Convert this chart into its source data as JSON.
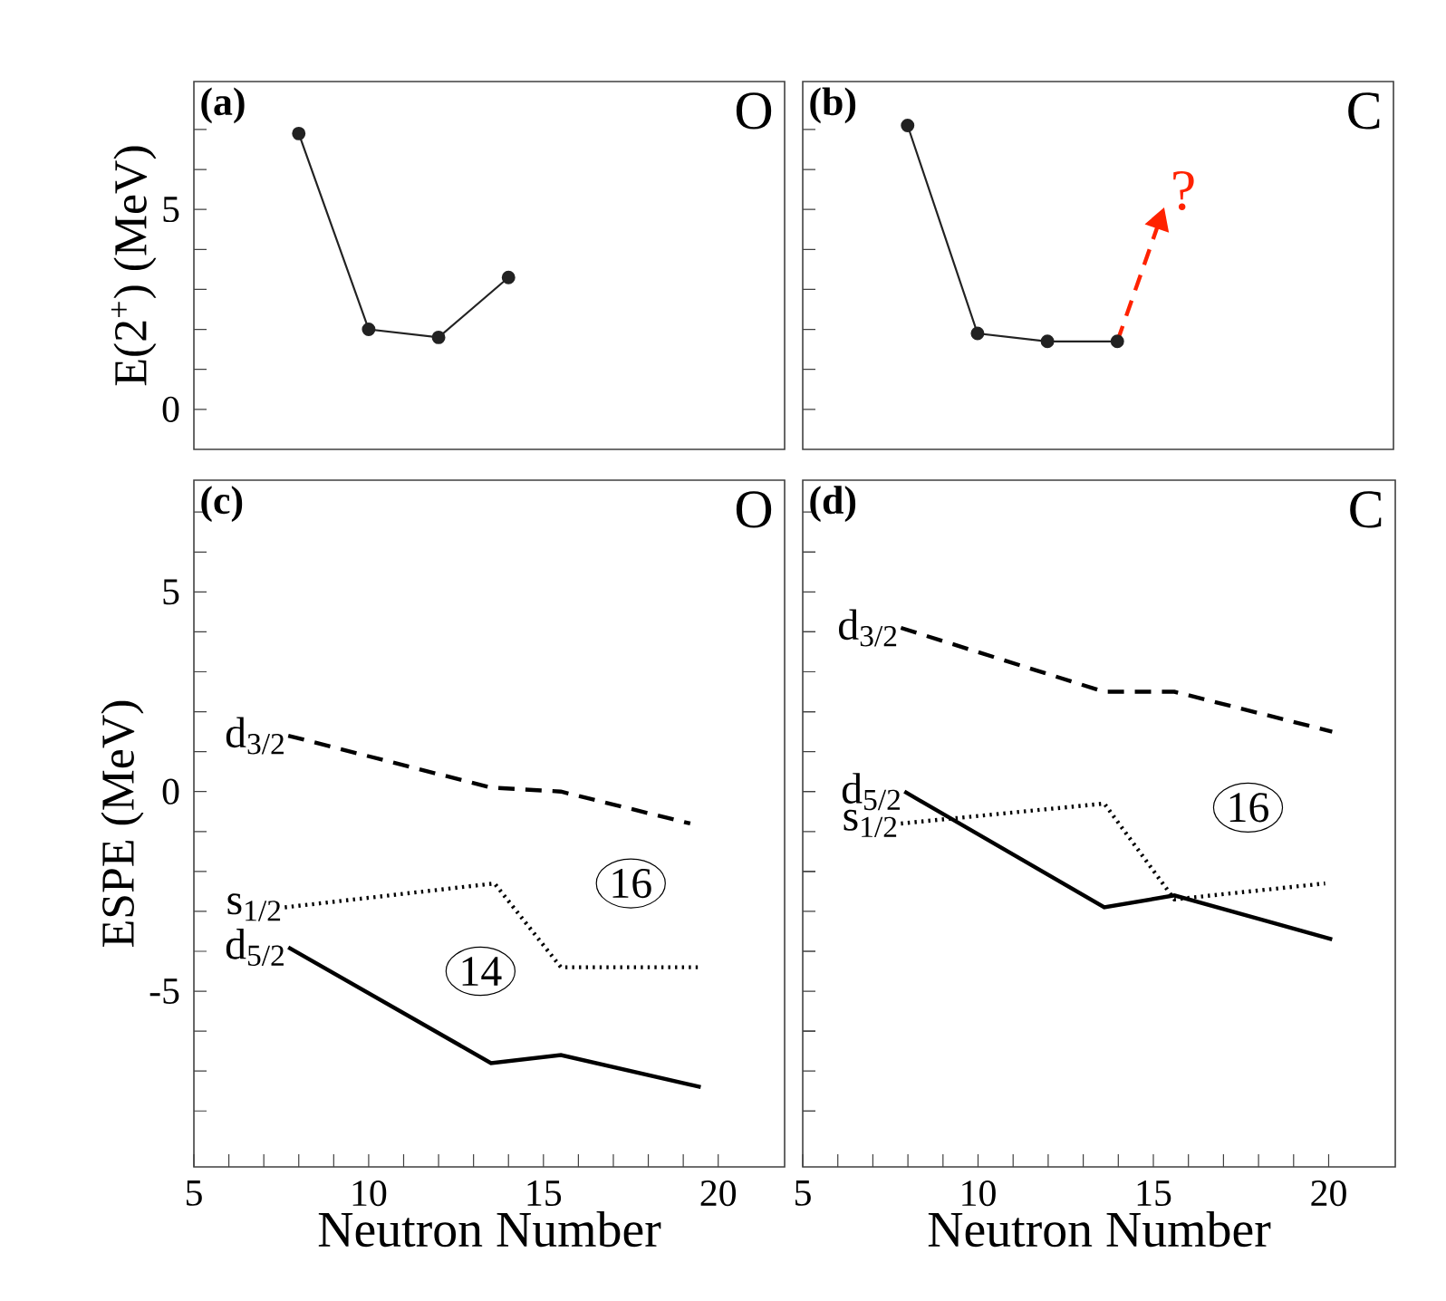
{
  "chart_data": [
    {
      "type": "line",
      "title": "(a)",
      "subtitle": "O",
      "ylabel": "E(2$^{+}$) (MeV)",
      "xlim": [
        5,
        21.9
      ],
      "ylim": [
        -1,
        8.2
      ],
      "yticks": [
        0,
        {
          "value": 1,
          "label": null
        },
        {
          "value": 2,
          "label": null
        },
        {
          "value": 3,
          "label": null
        },
        {
          "value": 4,
          "label": null
        },
        5,
        {
          "value": 6,
          "label": null
        },
        {
          "value": 7,
          "label": null
        }
      ],
      "tick_labels": "y",
      "marker": "circle",
      "line_style": "solid",
      "series": [
        {
          "color": "#222222",
          "x": [
            8,
            10,
            12,
            14
          ],
          "values": [
            6.9,
            2.0,
            1.8,
            3.3
          ]
        }
      ]
    },
    {
      "type": "line",
      "title": "(b)",
      "subtitle": "C",
      "xlim": [
        5,
        21.9
      ],
      "ylim": [
        -1,
        8.2
      ],
      "yticks": [
        0,
        {
          "value": 1,
          "label": null
        },
        {
          "value": 2,
          "label": null
        },
        {
          "value": 3,
          "label": null
        },
        {
          "value": 4,
          "label": null
        },
        5,
        {
          "value": 6,
          "label": null
        },
        {
          "value": 7,
          "label": null
        }
      ],
      "tick_labels": false,
      "marker": "circle",
      "line_style": "solid",
      "annotations": [
        "?"
      ],
      "series": [
        {
          "color": "#222222",
          "x": [
            8,
            10,
            12,
            14
          ],
          "values": [
            7.1,
            1.9,
            1.7,
            1.7
          ]
        },
        {
          "color": "#ff2200",
          "x": [
            14,
            15.2
          ],
          "values": [
            1.7,
            4.7
          ],
          "marker": "triangle",
          "line_style": "dashed"
        }
      ]
    },
    {
      "type": "line",
      "title": "(c)",
      "subtitle": "O",
      "xlabel": "Neutron Number",
      "ylabel": "ESPE (MeV)",
      "xlim": [
        5,
        21.9
      ],
      "ylim": [
        -9.4,
        7.8
      ],
      "xticks": [
        5,
        {
          "value": 6,
          "label": null
        },
        {
          "value": 7,
          "label": null
        },
        {
          "value": 8,
          "label": null
        },
        {
          "value": 9,
          "label": null
        },
        10,
        {
          "value": 11,
          "label": null
        },
        {
          "value": 12,
          "label": null
        },
        {
          "value": 13,
          "label": null
        },
        {
          "value": 14,
          "label": null
        },
        15,
        {
          "value": 16,
          "label": null
        },
        {
          "value": 17,
          "label": null
        },
        {
          "value": 18,
          "label": null
        },
        {
          "value": 19,
          "label": null
        },
        20
      ],
      "yticks": [
        {
          "value": -8,
          "label": null
        },
        {
          "value": -7,
          "label": null
        },
        {
          "value": -6,
          "label": null
        },
        -5,
        {
          "value": -4,
          "label": null
        },
        {
          "value": -3,
          "label": null
        },
        {
          "value": -2,
          "label": null
        },
        {
          "value": -1,
          "label": null
        },
        0,
        {
          "value": 1,
          "label": null
        },
        {
          "value": 2,
          "label": null
        },
        {
          "value": 3,
          "label": null
        },
        {
          "value": 4,
          "label": null
        },
        5,
        {
          "value": 6,
          "label": null
        },
        {
          "value": 7,
          "label": null
        }
      ],
      "annotations": [
        {
          "text": "16",
          "x": 17.5,
          "y": -2.3
        },
        {
          "text": "14",
          "x": 13.2,
          "y": -4.5
        }
      ],
      "series": [
        {
          "name": "d$_{3/2}$",
          "color": "#000000",
          "line_style": "dashed",
          "x": [
            7.7,
            13.5,
            15.5,
            19.2
          ],
          "values": [
            1.4,
            0.1,
            0.0,
            -0.8
          ]
        },
        {
          "name": "s$_{1/2}$",
          "color": "#000000",
          "line_style": "dotted",
          "x": [
            7.6,
            13.6,
            15.5,
            19.5
          ],
          "values": [
            -2.9,
            -2.3,
            -4.4,
            -4.4
          ]
        },
        {
          "name": "d$_{5/2}$",
          "color": "#000000",
          "line_style": "solid",
          "x": [
            7.7,
            13.5,
            15.5,
            19.5
          ],
          "values": [
            -3.9,
            -6.8,
            -6.6,
            -7.4
          ]
        }
      ]
    },
    {
      "type": "line",
      "title": "(d)",
      "subtitle": "C",
      "xlabel": "Neutron Number",
      "xlim": [
        5,
        21.9
      ],
      "ylim": [
        -9.4,
        7.8
      ],
      "tick_labels": "x",
      "xticks": [
        5,
        {
          "value": 6,
          "label": null
        },
        {
          "value": 7,
          "label": null
        },
        {
          "value": 8,
          "label": null
        },
        {
          "value": 9,
          "label": null
        },
        10,
        {
          "value": 11,
          "label": null
        },
        {
          "value": 12,
          "label": null
        },
        {
          "value": 13,
          "label": null
        },
        {
          "value": 14,
          "label": null
        },
        15,
        {
          "value": 16,
          "label": null
        },
        {
          "value": 17,
          "label": null
        },
        {
          "value": 18,
          "label": null
        },
        {
          "value": 19,
          "label": null
        },
        20
      ],
      "yticks": [
        {
          "value": -8,
          "label": null
        },
        {
          "value": -7,
          "label": null
        },
        {
          "value": -6,
          "label": null
        },
        {
          "value": -5,
          "label": null
        },
        {
          "value": -4,
          "label": null
        },
        {
          "value": -3,
          "label": null
        },
        {
          "value": -2,
          "label": null
        },
        {
          "value": -1,
          "label": null
        },
        {
          "value": 0,
          "label": null
        },
        {
          "value": 1,
          "label": null
        },
        {
          "value": 2,
          "label": null
        },
        {
          "value": 3,
          "label": null
        },
        {
          "value": 4,
          "label": null
        },
        {
          "value": 5,
          "label": null
        },
        {
          "value": 6,
          "label": null
        },
        {
          "value": 7,
          "label": null
        }
      ],
      "annotations": [
        {
          "text": "16",
          "x": 17.7,
          "y": -0.4
        }
      ],
      "series": [
        {
          "name": "d$_{3/2}$",
          "color": "#000000",
          "line_style": "dashed",
          "x": [
            7.8,
            13.6,
            15.6,
            20.1
          ],
          "values": [
            4.1,
            2.5,
            2.5,
            1.5
          ]
        },
        {
          "name": "d$_{5/2}$",
          "color": "#000000",
          "line_style": "solid",
          "x": [
            7.9,
            13.6,
            15.6,
            20.1
          ],
          "values": [
            0.0,
            -2.9,
            -2.6,
            -3.7
          ]
        },
        {
          "name": "s$_{1/2}$",
          "color": "#000000",
          "line_style": "dotted",
          "x": [
            7.8,
            13.6,
            15.6,
            19.9
          ],
          "values": [
            -0.8,
            -0.3,
            -2.7,
            -2.3
          ]
        }
      ]
    }
  ]
}
